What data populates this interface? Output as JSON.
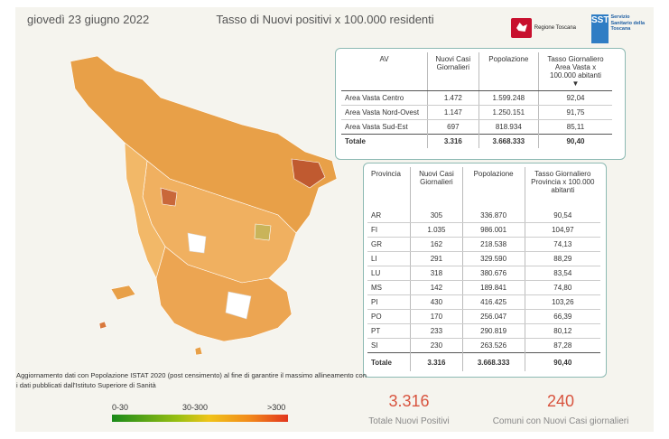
{
  "header": {
    "date": "giovedì 23 giugno 2022",
    "title": "Tasso di Nuovi positivi x 100.000 residenti",
    "logo_rt_text": "Regione Toscana",
    "logo_sst_text": "SST",
    "logo_sst_caption": "Servizio Sanitario della Toscana"
  },
  "av_table": {
    "headers": [
      "AV",
      "Nuovi Casi Giornalieri",
      "Popolazione",
      "Tasso Giornaliero Area Vasta x 100.000 abitanti"
    ],
    "rows": [
      [
        "Area Vasta Centro",
        "1.472",
        "1.599.248",
        "92,04"
      ],
      [
        "Area Vasta Nord-Ovest",
        "1.147",
        "1.250.151",
        "91,75"
      ],
      [
        "Area Vasta Sud-Est",
        "697",
        "818.934",
        "85,11"
      ]
    ],
    "total": [
      "Totale",
      "3.316",
      "3.668.333",
      "90,40"
    ]
  },
  "prov_table": {
    "headers": [
      "Provincia",
      "Nuovi Casi Giornalieri",
      "Popolazione",
      "Tasso Giornaliero Provincia x 100.000 abitanti"
    ],
    "rows": [
      [
        "AR",
        "305",
        "336.870",
        "90,54"
      ],
      [
        "FI",
        "1.035",
        "986.001",
        "104,97"
      ],
      [
        "GR",
        "162",
        "218.538",
        "74,13"
      ],
      [
        "LI",
        "291",
        "329.590",
        "88,29"
      ],
      [
        "LU",
        "318",
        "380.676",
        "83,54"
      ],
      [
        "MS",
        "142",
        "189.841",
        "74,80"
      ],
      [
        "PI",
        "430",
        "416.425",
        "103,26"
      ],
      [
        "PO",
        "170",
        "256.047",
        "66,39"
      ],
      [
        "PT",
        "233",
        "290.819",
        "80,12"
      ],
      [
        "SI",
        "230",
        "263.526",
        "87,28"
      ]
    ],
    "total": [
      "Totale",
      "3.316",
      "3.668.333",
      "90,40"
    ]
  },
  "note": "Aggiornamento dati con Popolazione ISTAT 2020 (post censimento) al fine di garantire il massimo allineamento con i dati pubblicati dall'Istituto Superiore di Sanità",
  "legend": {
    "low": "0-30",
    "mid": "30-300",
    "high": ">300"
  },
  "kpi": {
    "positives_value": "3.316",
    "positives_label": "Totale Nuovi Positivi",
    "comuni_value": "240",
    "comuni_label": "Comuni con Nuovi Casi giornalieri"
  },
  "colors": {
    "accent": "#d8543f",
    "panel": "#f5f4ee",
    "border": "#8dbab3",
    "map_fill": "#f0a850"
  }
}
